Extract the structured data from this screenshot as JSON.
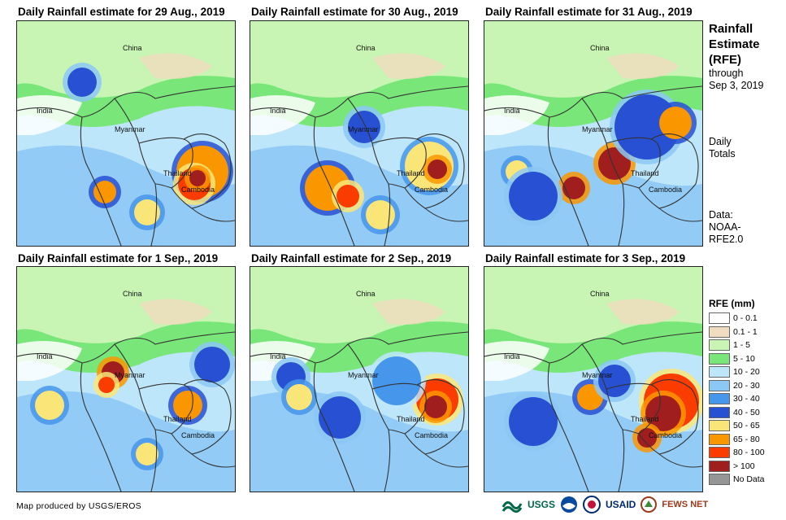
{
  "panels": [
    {
      "title": "Daily Rainfall estimate for 29 Aug., 2019",
      "labels": {
        "china": "China",
        "india": "India",
        "myanmar": "Myanmar",
        "thailand": "Thailand",
        "cambodia": "Cambodia"
      }
    },
    {
      "title": "Daily Rainfall estimate for 30 Aug., 2019",
      "labels": {
        "china": "China",
        "india": "India",
        "myanmar": "Myanmar",
        "thailand": "Thailand",
        "cambodia": "Cambodia"
      }
    },
    {
      "title": "Daily Rainfall estimate for 31 Aug., 2019",
      "labels": {
        "china": "China",
        "india": "India",
        "myanmar": "Myanmar",
        "thailand": "Thailand",
        "cambodia": "Cambodia"
      }
    },
    {
      "title": "Daily Rainfall estimate for 1  Sep., 2019",
      "labels": {
        "china": "China",
        "india": "India",
        "myanmar": "Myanmar",
        "thailand": "Thailand",
        "cambodia": "Cambodia"
      }
    },
    {
      "title": "Daily Rainfall estimate for 2  Sep., 2019",
      "labels": {
        "china": "China",
        "india": "India",
        "myanmar": "Myanmar",
        "thailand": "Thailand",
        "cambodia": "Cambodia"
      }
    },
    {
      "title": "Daily Rainfall estimate for 3  Sep., 2019",
      "labels": {
        "china": "China",
        "india": "India",
        "myanmar": "Myanmar",
        "thailand": "Thailand",
        "cambodia": "Cambodia"
      }
    }
  ],
  "side": {
    "title_line1": "Rainfall",
    "title_line2": "Estimate",
    "title_line3": "(RFE)",
    "through": "through",
    "date": "Sep 3, 2019",
    "daily": "Daily",
    "totals": "Totals",
    "data_label": "Data:",
    "source1": "NOAA-",
    "source2": "RFE2.0"
  },
  "legend": {
    "title": "RFE (mm)",
    "items": [
      {
        "label": "0 - 0.1",
        "color": "#ffffff"
      },
      {
        "label": "0.1 - 1",
        "color": "#f0dcbe"
      },
      {
        "label": "1 - 5",
        "color": "#c8f5b4"
      },
      {
        "label": "5 - 10",
        "color": "#78e678"
      },
      {
        "label": "10 - 20",
        "color": "#bee6fa"
      },
      {
        "label": "20 - 30",
        "color": "#8cc8f5"
      },
      {
        "label": "30 - 40",
        "color": "#4696eb"
      },
      {
        "label": "40 - 50",
        "color": "#2850d2"
      },
      {
        "label": "50 - 65",
        "color": "#fae678"
      },
      {
        "label": "65 - 80",
        "color": "#fa9600"
      },
      {
        "label": "80 - 100",
        "color": "#fa3c00"
      },
      {
        "label": "> 100",
        "color": "#a01e1e"
      },
      {
        "label": "No Data",
        "color": "#969696"
      }
    ]
  },
  "footer": "Map produced by USGS/EROS",
  "logos": {
    "usgs": "USGS",
    "usaid": "USAID",
    "fews": "FEWS NET"
  }
}
